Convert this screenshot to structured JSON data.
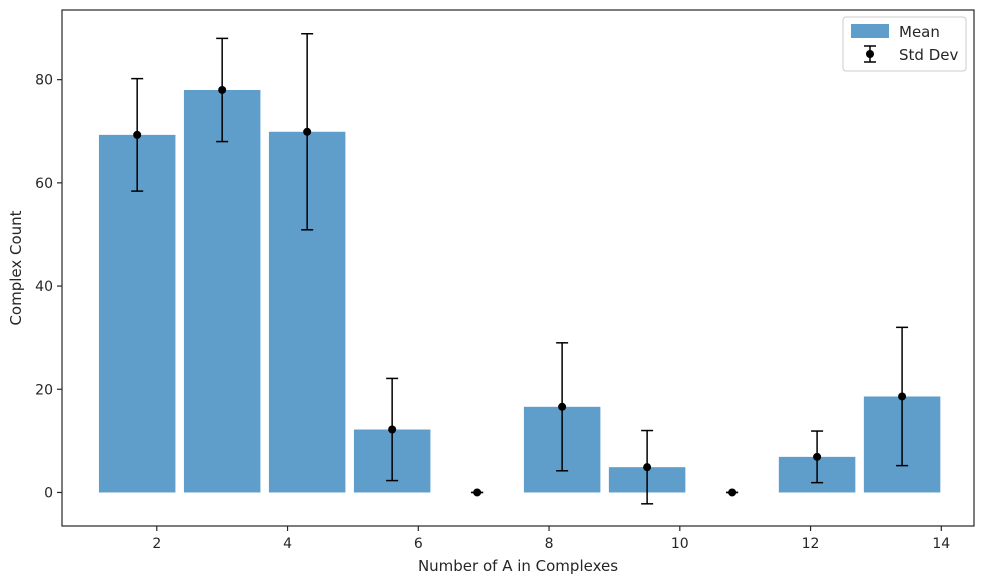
{
  "chart_data": {
    "type": "bar",
    "xlabel": "Number of A in Complexes",
    "ylabel": "Complex Count",
    "xlim": [
      0.55,
      14.5
    ],
    "ylim": [
      -6.5,
      93.5
    ],
    "xticks": [
      2,
      4,
      6,
      8,
      10,
      12,
      14
    ],
    "yticks": [
      0,
      20,
      40,
      60,
      80
    ],
    "bar_width_data": 1.17,
    "grid": false,
    "legend": {
      "placement": "top-right",
      "entries": [
        {
          "label": "Mean",
          "kind": "bar"
        },
        {
          "label": "Std Dev",
          "kind": "errorbar"
        }
      ]
    },
    "colors": {
      "bar": "#5f9ecb",
      "error": "#000000"
    },
    "series": [
      {
        "name": "Mean",
        "points": [
          {
            "x": 1.7,
            "y": 69.3,
            "std": 10.9
          },
          {
            "x": 3.0,
            "y": 78.0,
            "std": 10.0
          },
          {
            "x": 4.3,
            "y": 69.9,
            "std": 19.0
          },
          {
            "x": 5.6,
            "y": 12.2,
            "std": 9.9
          },
          {
            "x": 6.9,
            "y": 0.0,
            "std": 0.0
          },
          {
            "x": 8.2,
            "y": 16.6,
            "std": 12.4
          },
          {
            "x": 9.5,
            "y": 4.9,
            "std": 7.1
          },
          {
            "x": 10.8,
            "y": 0.0,
            "std": 0.0
          },
          {
            "x": 12.1,
            "y": 6.9,
            "std": 5.0
          },
          {
            "x": 13.4,
            "y": 18.6,
            "std": 13.4
          }
        ]
      }
    ]
  }
}
